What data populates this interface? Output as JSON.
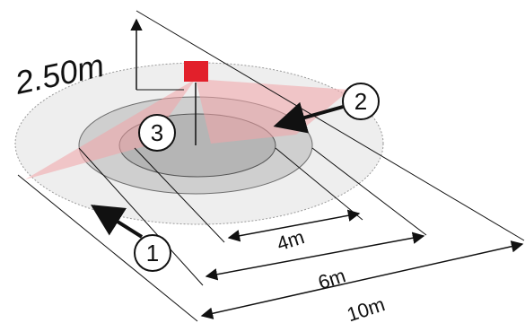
{
  "colors": {
    "outer_zone": "#eeeeee",
    "middle_zone": "#cfcfcf",
    "inner_zone": "#b5b5b5",
    "detection_wedge": "#f2a4a8",
    "sensor": "#e2202b",
    "line": "#111111"
  },
  "labels": {
    "mount_height": "2.50m",
    "inner_diameter": "4m",
    "middle_diameter": "6m",
    "outer_diameter": "10m"
  },
  "callouts": {
    "outer_zone": "1",
    "middle_zone": "2",
    "sensor_center": "3"
  }
}
